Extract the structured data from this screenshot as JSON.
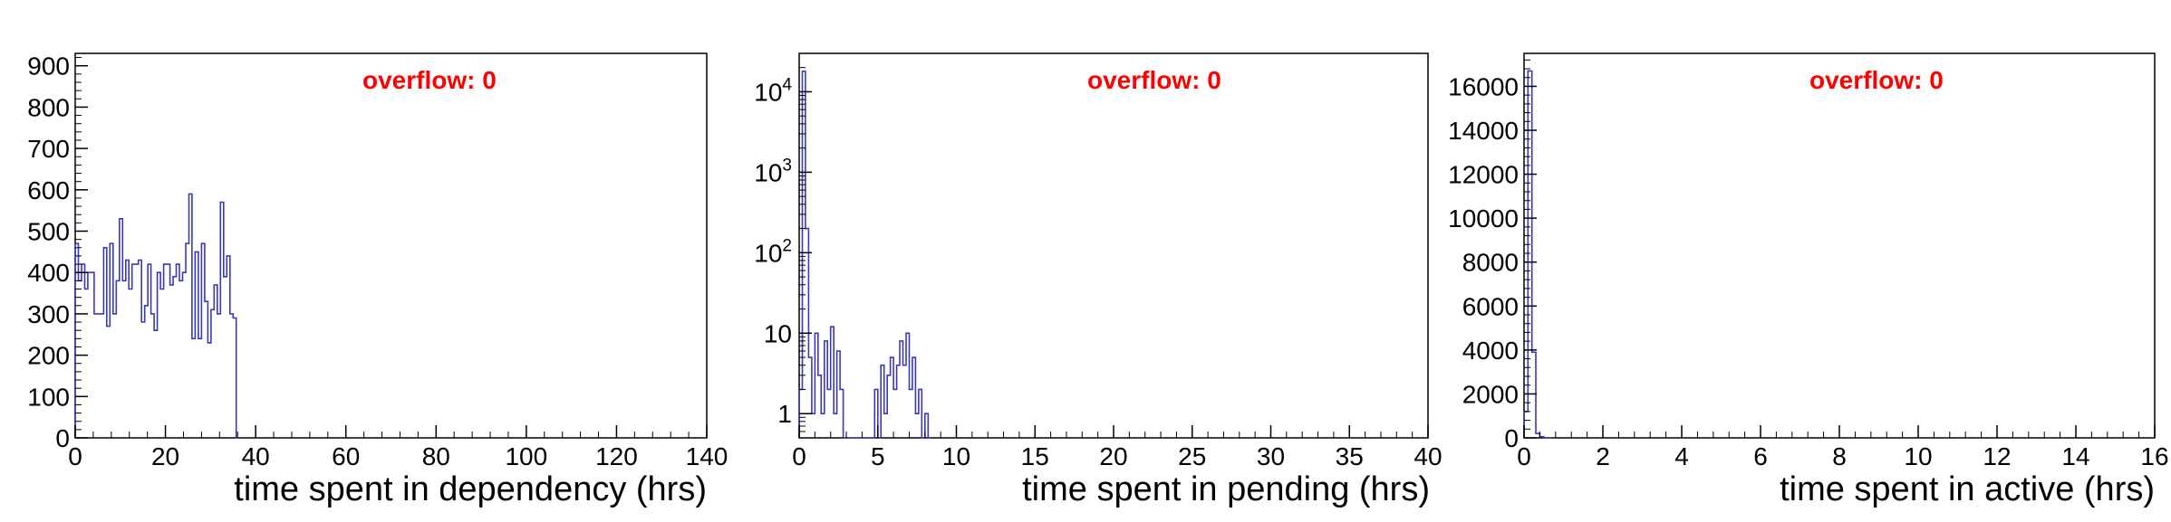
{
  "chart_data": [
    {
      "type": "histogram",
      "xlabel": "time spent in dependency (hrs)",
      "annotation": "overflow: 0",
      "annotation_color": "#ff0000",
      "line_color": "#3a3ab0",
      "xlim": [
        0,
        140
      ],
      "ylim": [
        0,
        930
      ],
      "log_y": false,
      "x_ticks": [
        0,
        20,
        40,
        60,
        80,
        100,
        120,
        140
      ],
      "x_tick_labels": [
        "0",
        "20",
        "40",
        "60",
        "80",
        "100",
        "120",
        "140"
      ],
      "y_ticks": [
        0,
        100,
        200,
        300,
        400,
        500,
        600,
        700,
        800,
        900
      ],
      "y_tick_labels": [
        "0",
        "100",
        "200",
        "300",
        "400",
        "500",
        "600",
        "700",
        "800",
        "900"
      ],
      "bin_width": 0.7,
      "bin_start": 0,
      "values": [
        470,
        380,
        420,
        360,
        400,
        400,
        300,
        300,
        300,
        460,
        270,
        470,
        300,
        380,
        530,
        380,
        430,
        360,
        420,
        420,
        430,
        280,
        320,
        420,
        300,
        260,
        400,
        360,
        420,
        420,
        370,
        390,
        420,
        380,
        400,
        470,
        590,
        240,
        450,
        240,
        470,
        330,
        230,
        310,
        370,
        300,
        570,
        390,
        440,
        300,
        290,
        0
      ]
    },
    {
      "type": "histogram",
      "xlabel": "time spent in pending (hrs)",
      "annotation": "overflow: 0",
      "annotation_color": "#ff0000",
      "line_color": "#3a3ab0",
      "xlim": [
        0,
        40
      ],
      "ylim": [
        0.5,
        30000
      ],
      "log_y": true,
      "x_ticks": [
        0,
        5,
        10,
        15,
        20,
        25,
        30,
        35,
        40
      ],
      "x_tick_labels": [
        "0",
        "5",
        "10",
        "15",
        "20",
        "25",
        "30",
        "35",
        "40"
      ],
      "y_ticks": [
        1,
        10,
        100,
        1000,
        10000
      ],
      "y_tick_labels": [
        "1",
        "10",
        "10^2",
        "10^3",
        "10^4"
      ],
      "bin_width": 0.2,
      "bin_start": 0,
      "values": [
        2,
        18000,
        200,
        5,
        1,
        10,
        3,
        1,
        8,
        2,
        12,
        1,
        6,
        2,
        0,
        0,
        0,
        0,
        0,
        0,
        0,
        0,
        0,
        0,
        2,
        0,
        4,
        1,
        3,
        5,
        2,
        4,
        8,
        4,
        10,
        2,
        5,
        1,
        2,
        0,
        1,
        0
      ]
    },
    {
      "type": "histogram",
      "xlabel": "time spent in active (hrs)",
      "annotation": "overflow: 0",
      "annotation_color": "#ff0000",
      "line_color": "#3a3ab0",
      "xlim": [
        0,
        16
      ],
      "ylim": [
        0,
        17500
      ],
      "log_y": false,
      "x_ticks": [
        0,
        2,
        4,
        6,
        8,
        10,
        12,
        14,
        16
      ],
      "x_tick_labels": [
        "0",
        "2",
        "4",
        "6",
        "8",
        "10",
        "12",
        "14",
        "16"
      ],
      "y_ticks": [
        0,
        2000,
        4000,
        6000,
        8000,
        10000,
        12000,
        14000,
        16000
      ],
      "y_tick_labels": [
        "0",
        "2000",
        "4000",
        "6000",
        "8000",
        "10000",
        "12000",
        "14000",
        "16000"
      ],
      "bin_width": 0.1,
      "bin_start": 0,
      "values": [
        1200,
        16700,
        3900,
        200,
        50,
        10,
        0
      ]
    }
  ]
}
